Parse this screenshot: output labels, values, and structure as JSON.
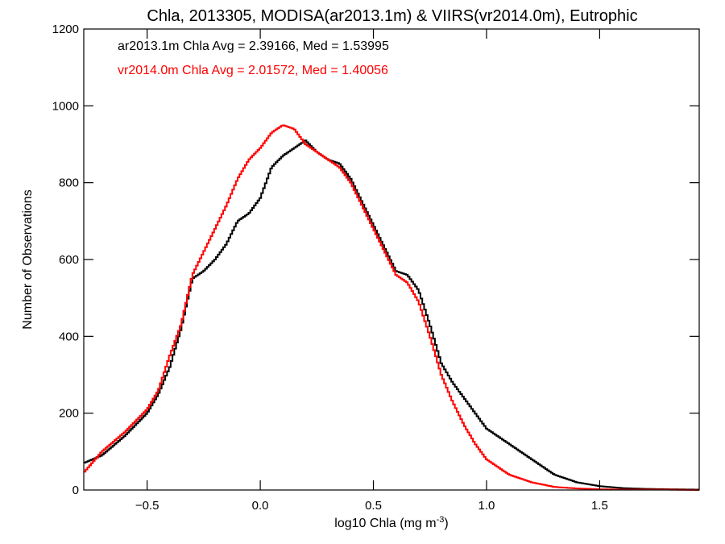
{
  "chart_data": {
    "type": "line",
    "style": "step-histogram",
    "title": "Chla, 2013305, MODISA(ar2013.1m) & VIIRS(vr2014.0m), Eutrophic",
    "xlabel": "log10 Chla (mg m",
    "xlabel_sup": "-3",
    "xlabel_end": ")",
    "ylabel": "Number of Observations",
    "xlim": [
      -0.78,
      1.94
    ],
    "ylim": [
      0,
      1200
    ],
    "xticks": [
      -0.5,
      0.0,
      0.5,
      1.0,
      1.5
    ],
    "xtick_labels": [
      "−0.5",
      "0.0",
      "0.5",
      "1.0",
      "1.5"
    ],
    "yticks": [
      0,
      200,
      400,
      600,
      800,
      1000,
      1200
    ],
    "ytick_labels": [
      "0",
      "200",
      "400",
      "600",
      "800",
      "1000",
      "1200"
    ],
    "grid": false,
    "annotations": [
      {
        "text": "ar2013.1m Chla Avg = 2.39166, Med = 1.53995",
        "color": "#000000"
      },
      {
        "text": "vr2014.0m Chla Avg = 2.01572, Med = 1.40056",
        "color": "#ff0000"
      }
    ],
    "series": [
      {
        "color": "#000000",
        "x": [
          -0.78,
          -0.7,
          -0.6,
          -0.5,
          -0.45,
          -0.4,
          -0.35,
          -0.3,
          -0.25,
          -0.2,
          -0.15,
          -0.1,
          -0.05,
          0.0,
          0.05,
          0.1,
          0.15,
          0.2,
          0.25,
          0.3,
          0.35,
          0.4,
          0.45,
          0.5,
          0.55,
          0.6,
          0.65,
          0.7,
          0.75,
          0.8,
          0.85,
          0.9,
          0.95,
          1.0,
          1.05,
          1.1,
          1.15,
          1.2,
          1.3,
          1.4,
          1.5,
          1.6,
          1.7,
          1.8,
          1.94
        ],
        "y": [
          70,
          90,
          140,
          200,
          250,
          320,
          420,
          550,
          570,
          600,
          640,
          700,
          720,
          760,
          840,
          870,
          890,
          910,
          880,
          860,
          850,
          810,
          750,
          690,
          630,
          570,
          560,
          520,
          430,
          330,
          280,
          240,
          200,
          160,
          140,
          120,
          100,
          80,
          40,
          20,
          10,
          5,
          3,
          2,
          1
        ]
      },
      {
        "color": "#ff0000",
        "x": [
          -0.78,
          -0.7,
          -0.6,
          -0.5,
          -0.45,
          -0.4,
          -0.35,
          -0.3,
          -0.25,
          -0.2,
          -0.15,
          -0.1,
          -0.05,
          0.0,
          0.05,
          0.1,
          0.15,
          0.2,
          0.25,
          0.3,
          0.35,
          0.4,
          0.45,
          0.5,
          0.55,
          0.6,
          0.65,
          0.7,
          0.75,
          0.8,
          0.85,
          0.9,
          0.95,
          1.0,
          1.05,
          1.1,
          1.15,
          1.2,
          1.3,
          1.4,
          1.5,
          1.6,
          1.7,
          1.8,
          1.94
        ],
        "y": [
          45,
          100,
          150,
          210,
          260,
          350,
          430,
          560,
          620,
          680,
          740,
          810,
          860,
          890,
          930,
          950,
          940,
          900,
          880,
          860,
          840,
          800,
          740,
          680,
          620,
          560,
          540,
          490,
          400,
          300,
          230,
          170,
          120,
          80,
          60,
          40,
          30,
          20,
          8,
          4,
          2,
          1,
          1,
          1,
          0
        ]
      }
    ]
  }
}
